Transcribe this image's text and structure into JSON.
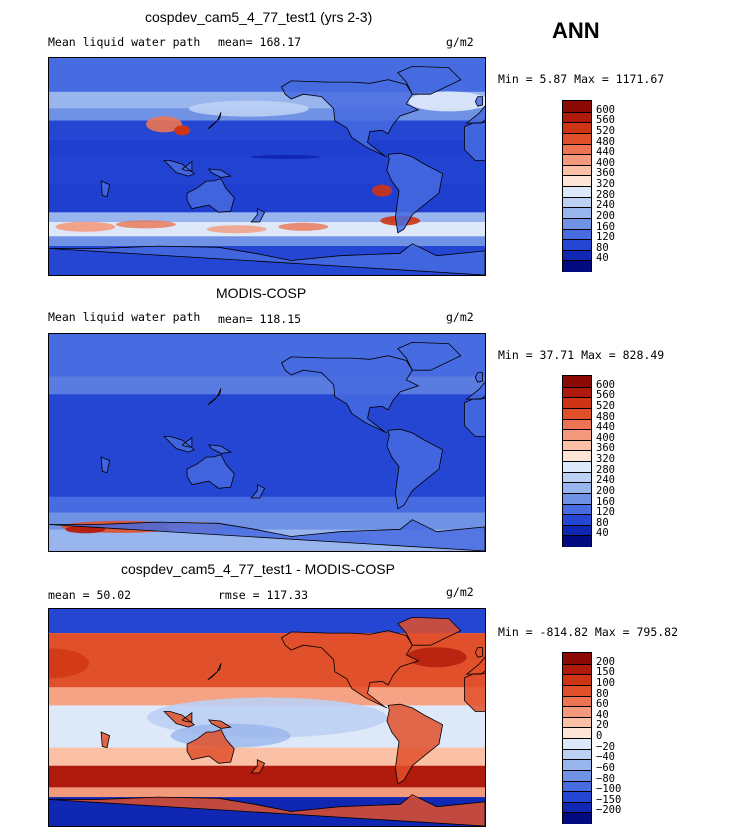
{
  "season": "ANN",
  "panels": [
    {
      "title": "cospdev_cam5_4_77_test1 (yrs 2-3)",
      "left_label": "Mean liquid water path",
      "mid_label": "mean= 168.17",
      "units": "g/m2",
      "minmax": "Min =   5.87 Max = 1171.67",
      "scheme": "model",
      "levels": [
        "600",
        "560",
        "520",
        "480",
        "440",
        "400",
        "360",
        "320",
        "280",
        "240",
        "200",
        "160",
        "120",
        "80",
        "40"
      ],
      "colors": [
        "#8b0a06",
        "#b01a0c",
        "#cf3414",
        "#e0502a",
        "#ec7452",
        "#f49a7c",
        "#fbc1a6",
        "#fde6d8",
        "#dde8f8",
        "#bcd0f4",
        "#98b5ee",
        "#7092e5",
        "#476be0",
        "#2546d2",
        "#1027b3",
        "#020a80"
      ]
    },
    {
      "title": "MODIS-COSP",
      "left_label": "Mean liquid water path",
      "mid_label": "mean= 118.15",
      "units": "g/m2",
      "minmax": "Min =  37.71 Max = 828.49",
      "scheme": "obs",
      "levels": [
        "600",
        "560",
        "520",
        "480",
        "440",
        "400",
        "360",
        "320",
        "280",
        "240",
        "200",
        "160",
        "120",
        "80",
        "40"
      ],
      "colors": [
        "#8b0a06",
        "#b01a0c",
        "#cf3414",
        "#e0502a",
        "#ec7452",
        "#f49a7c",
        "#fbc1a6",
        "#fde6d8",
        "#dde8f8",
        "#bcd0f4",
        "#98b5ee",
        "#7092e5",
        "#476be0",
        "#2546d2",
        "#1027b3",
        "#020a80"
      ]
    },
    {
      "title": "cospdev_cam5_4_77_test1 - MODIS-COSP",
      "left_label": "mean =  50.02",
      "mid_label": "rmse = 117.33",
      "units": "g/m2",
      "minmax": "Min = -814.82 Max = 795.82",
      "scheme": "diff",
      "levels": [
        "200",
        "150",
        "100",
        "80",
        "60",
        "40",
        "20",
        "0",
        "−20",
        "−40",
        "−60",
        "−80",
        "−100",
        "−150",
        "−200"
      ],
      "colors": [
        "#8b0a06",
        "#b01a0c",
        "#cf3414",
        "#e0502a",
        "#ec7452",
        "#f49a7c",
        "#fbc1a6",
        "#fde6d8",
        "#dde8f8",
        "#bcd0f4",
        "#98b5ee",
        "#7092e5",
        "#476be0",
        "#2546d2",
        "#1027b3",
        "#020a80"
      ]
    }
  ]
}
